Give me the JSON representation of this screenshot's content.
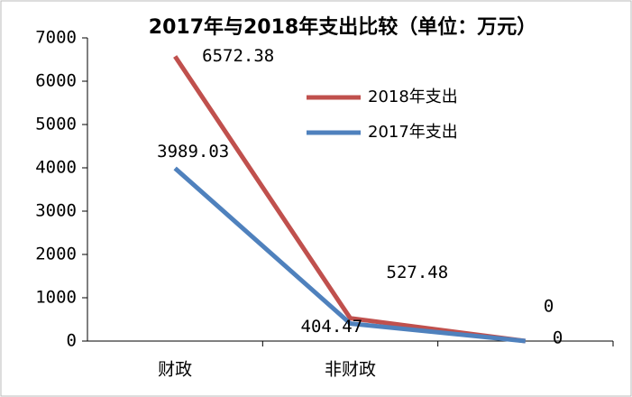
{
  "chart_data": {
    "type": "line",
    "title": "2017年与2018年支出比较（单位：万元）",
    "categories": [
      "财政",
      "非财政",
      null
    ],
    "series": [
      {
        "name": "2018年支出",
        "color": "#c0504d",
        "values": [
          6572.38,
          527.48,
          0
        ]
      },
      {
        "name": "2017年支出",
        "color": "#4f81bd",
        "values": [
          3989.03,
          404.47,
          0
        ]
      }
    ],
    "ylim": [
      0,
      7000
    ],
    "yticks": [
      0,
      1000,
      2000,
      3000,
      4000,
      5000,
      6000,
      7000
    ],
    "grid": false,
    "legend": "upper right"
  }
}
